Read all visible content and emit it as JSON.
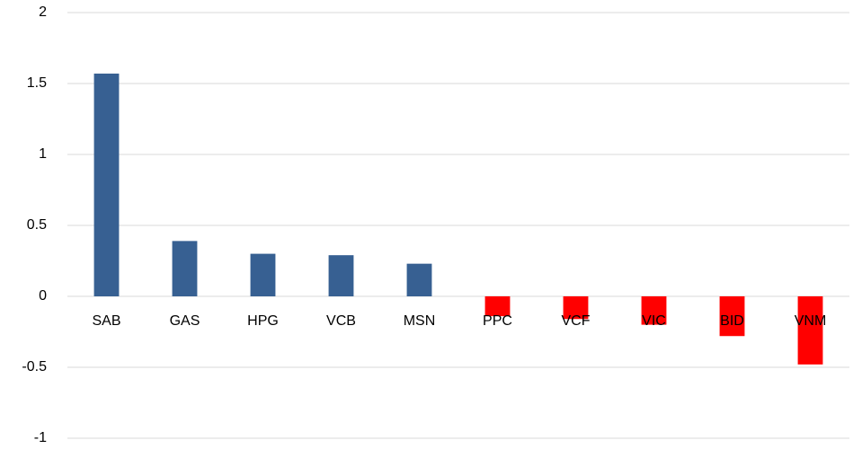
{
  "chart_data": {
    "type": "bar",
    "categories": [
      "SAB",
      "GAS",
      "HPG",
      "VCB",
      "MSN",
      "PPC",
      "VCF",
      "VIC",
      "BID",
      "VNM"
    ],
    "values": [
      1.57,
      0.39,
      0.3,
      0.29,
      0.23,
      -0.14,
      -0.16,
      -0.2,
      -0.28,
      -0.48
    ],
    "colors": [
      "#376092",
      "#376092",
      "#376092",
      "#376092",
      "#376092",
      "#ff0000",
      "#ff0000",
      "#ff0000",
      "#ff0000",
      "#ff0000"
    ],
    "ylim": [
      -1,
      2
    ],
    "yticks": [
      -1,
      -0.5,
      0,
      0.5,
      1,
      1.5,
      2
    ],
    "grid": true
  }
}
